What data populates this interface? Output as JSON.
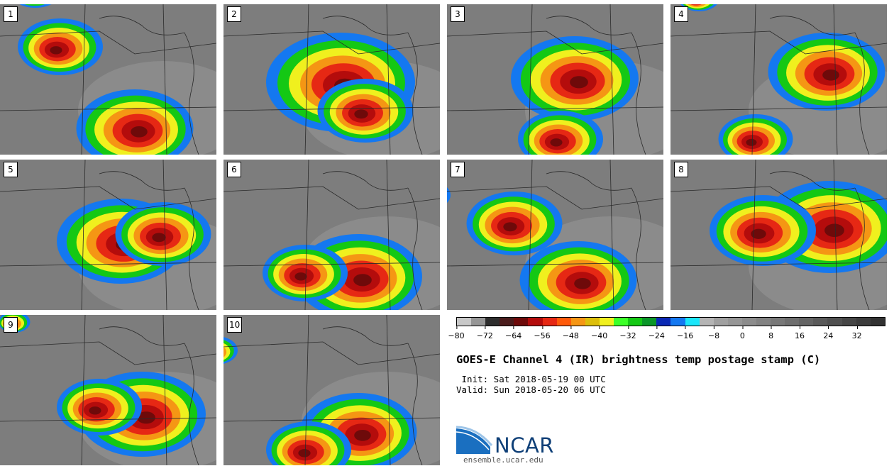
{
  "panels": [
    {
      "label": "1",
      "scene": [
        [
          190,
          175,
          55
        ],
        [
          85,
          60,
          40
        ],
        [
          50,
          -20,
          25
        ]
      ]
    },
    {
      "label": "2",
      "scene": [
        [
          165,
          110,
          70
        ],
        [
          200,
          150,
          45
        ],
        [
          30,
          -40,
          20
        ]
      ]
    },
    {
      "label": "3",
      "scene": [
        [
          180,
          105,
          60
        ],
        [
          160,
          190,
          40
        ],
        [
          -20,
          30,
          10
        ]
      ]
    },
    {
      "label": "4",
      "scene": [
        [
          220,
          95,
          55
        ],
        [
          120,
          190,
          35
        ],
        [
          40,
          -10,
          20
        ]
      ]
    },
    {
      "label": "5",
      "scene": [
        [
          170,
          115,
          60
        ],
        [
          230,
          105,
          45
        ],
        [
          -30,
          20,
          15
        ]
      ]
    },
    {
      "label": "6",
      "scene": [
        [
          190,
          165,
          60
        ],
        [
          115,
          160,
          40
        ],
        [
          -10,
          -20,
          10
        ]
      ]
    },
    {
      "label": "7",
      "scene": [
        [
          185,
          170,
          55
        ],
        [
          95,
          90,
          45
        ],
        [
          -25,
          50,
          20
        ]
      ]
    },
    {
      "label": "8",
      "scene": [
        [
          225,
          95,
          65
        ],
        [
          130,
          100,
          50
        ],
        [
          0,
          40,
          10
        ]
      ]
    },
    {
      "label": "9",
      "scene": [
        [
          200,
          140,
          60
        ],
        [
          140,
          130,
          40
        ],
        [
          20,
          10,
          15
        ]
      ]
    },
    {
      "label": "10",
      "scene": [
        [
          190,
          165,
          55
        ],
        [
          120,
          190,
          40
        ],
        [
          -10,
          50,
          20
        ]
      ]
    }
  ],
  "colorbar": {
    "colors": [
      "#c8c8c8",
      "#969696",
      "#2e2e2e",
      "#4a1c1c",
      "#6e0a0a",
      "#b40c0c",
      "#e62814",
      "#ff5a0a",
      "#f59614",
      "#dcbe0a",
      "#f0f01e",
      "#3cff28",
      "#14c814",
      "#0a9628",
      "#0a28b4",
      "#1478f0",
      "#19e6fa",
      "#b4b4b4",
      "#a0a0a0",
      "#969696",
      "#8c8c8c",
      "#828282",
      "#787878",
      "#6e6e6e",
      "#646464",
      "#5a5a5a",
      "#505050",
      "#464646",
      "#3c3c3c",
      "#323232"
    ],
    "min": -80,
    "max": 40,
    "ticks": [
      "−80",
      "−72",
      "−64",
      "−56",
      "−48",
      "−40",
      "−32",
      "−24",
      "−16",
      "−8",
      "0",
      "8",
      "16",
      "24",
      "32"
    ]
  },
  "title": "GOES-E Channel 4 (IR) brightness temp postage stamp (C)",
  "init": " Init: Sat 2018-05-19 00 UTC",
  "valid": "Valid: Sun 2018-05-20 06 UTC",
  "logo": {
    "text": "NCAR"
  },
  "site": "ensemble.ucar.edu"
}
